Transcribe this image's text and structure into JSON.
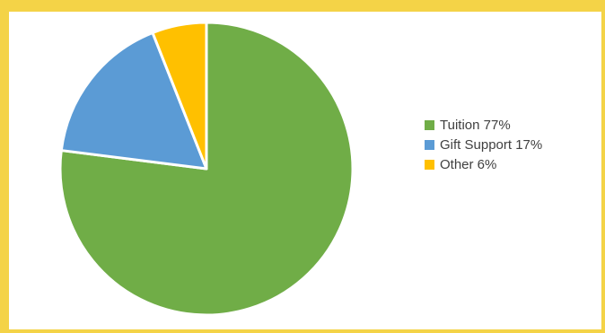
{
  "chart_data": {
    "type": "pie",
    "categories": [
      "Tuition",
      "Gift Support",
      "Other"
    ],
    "values": [
      77,
      17,
      6
    ],
    "colors": [
      "#70ad47",
      "#5b9bd5",
      "#ffc000"
    ],
    "legend_labels": [
      "Tuition 77%",
      "Gift Support 17%",
      "Other 6%"
    ],
    "legend_position": "right",
    "start_angle_deg": 0,
    "direction": "clockwise"
  },
  "colors": {
    "border": "#f4d347",
    "background": "#ffffff",
    "slice_separator": "#ffffff",
    "legend_text": "#404040"
  }
}
